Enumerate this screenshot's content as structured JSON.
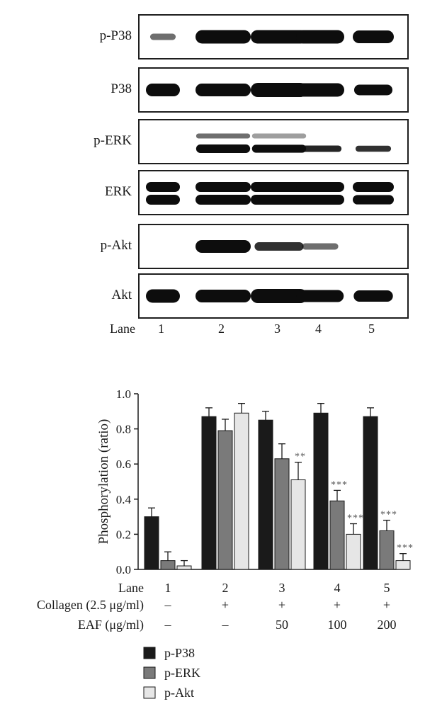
{
  "blot": {
    "rows": [
      {
        "label": "p-P38",
        "bands": [
          0.35,
          0.95,
          0.95,
          0.95,
          0.9
        ],
        "double": false
      },
      {
        "label": "P38",
        "bands": [
          0.9,
          0.9,
          1.0,
          0.95,
          0.75
        ],
        "double": false
      },
      {
        "label": "p-ERK",
        "bands": [
          0.0,
          0.85,
          0.8,
          0.65,
          0.6
        ],
        "double": true,
        "upper": [
          0.0,
          0.35,
          0.15,
          0.0,
          0.0
        ]
      },
      {
        "label": "ERK",
        "bands": [
          1.0,
          1.0,
          1.0,
          1.0,
          0.95
        ],
        "double": true,
        "upper": [
          1.0,
          1.0,
          1.0,
          1.0,
          0.95
        ]
      },
      {
        "label": "p-Akt",
        "bands": [
          0.0,
          0.9,
          0.6,
          0.35,
          0.0
        ],
        "double": false
      },
      {
        "label": "Akt",
        "bands": [
          0.95,
          0.9,
          1.0,
          0.85,
          0.8
        ],
        "double": false
      }
    ],
    "lane_title": "Lane",
    "lanes": [
      "1",
      "2",
      "3",
      "4",
      "5"
    ]
  },
  "chart_data": {
    "type": "bar",
    "ylabel": "Phosphorylation (ratio)",
    "ylim": [
      0,
      1.0
    ],
    "yticks": [
      "0.0",
      "0.2",
      "0.4",
      "0.6",
      "0.8",
      "1.0"
    ],
    "categories": [
      "1",
      "2",
      "3",
      "4",
      "5"
    ],
    "series": [
      {
        "name": "p-P38",
        "color": "#1a1a1a",
        "values": [
          0.3,
          0.87,
          0.85,
          0.89,
          0.87
        ],
        "errors": [
          0.05,
          0.05,
          0.05,
          0.055,
          0.05
        ],
        "marks": [
          "",
          "",
          "",
          "",
          ""
        ]
      },
      {
        "name": "p-ERK",
        "color": "#7a7a7a",
        "values": [
          0.05,
          0.79,
          0.63,
          0.39,
          0.22
        ],
        "errors": [
          0.05,
          0.065,
          0.085,
          0.06,
          0.06
        ],
        "marks": [
          "",
          "",
          "",
          "***",
          "***"
        ]
      },
      {
        "name": "p-Akt",
        "color": "#e6e6e6",
        "values": [
          0.02,
          0.89,
          0.51,
          0.2,
          0.05
        ],
        "errors": [
          0.03,
          0.055,
          0.1,
          0.06,
          0.04
        ],
        "marks": [
          "",
          "",
          "**",
          "***",
          "***"
        ]
      }
    ],
    "row_labels": [
      "Lane",
      "Collagen (2.5 μg/ml)",
      "EAF (μg/ml)"
    ],
    "collagen": [
      "–",
      "+",
      "+",
      "+",
      "+"
    ],
    "eaf": [
      "–",
      "–",
      "50",
      "100",
      "200"
    ],
    "legend_position": "bottom-left"
  }
}
